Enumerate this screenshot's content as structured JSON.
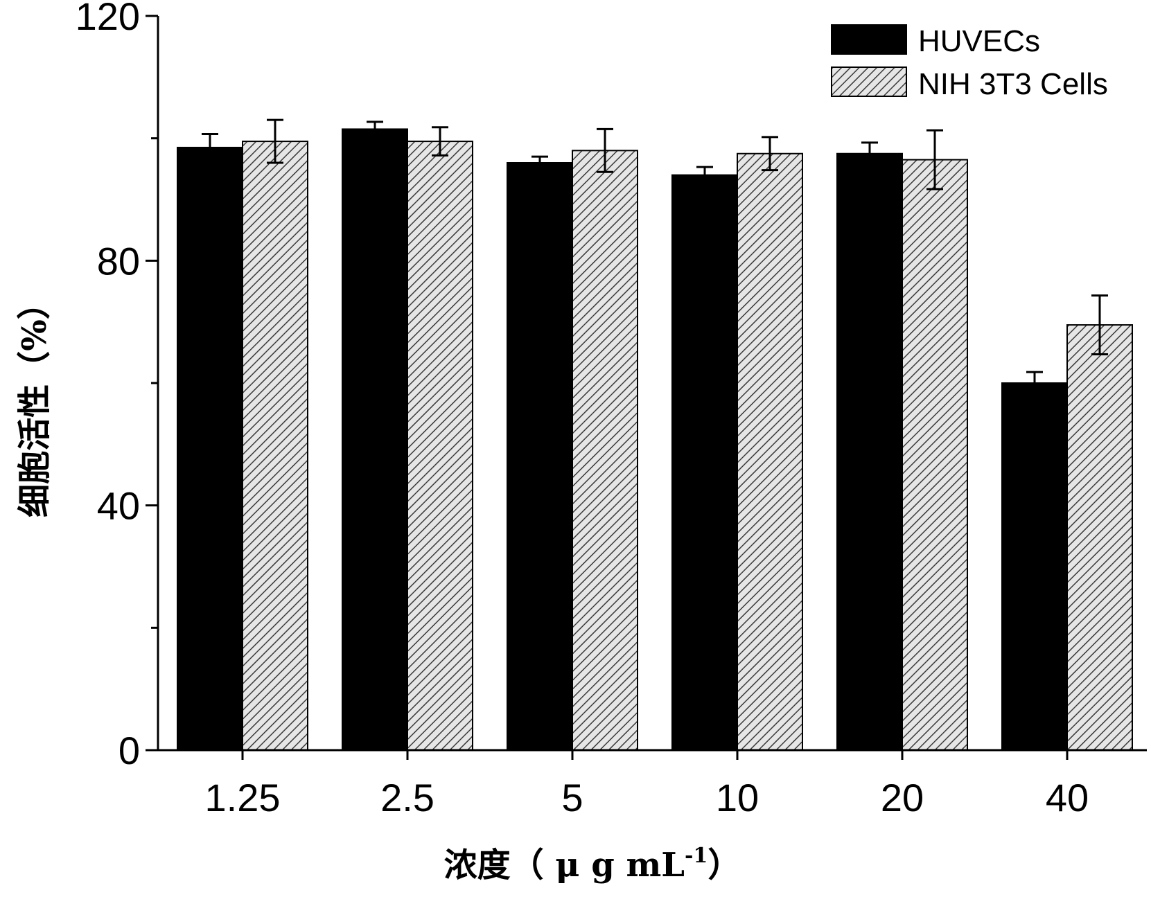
{
  "chart_data": {
    "type": "bar",
    "categories": [
      "1.25",
      "2.5",
      "5",
      "10",
      "20",
      "40"
    ],
    "series": [
      {
        "name": "HUVECs",
        "values": [
          98.5,
          101.5,
          96,
          94,
          97.5,
          60
        ],
        "errors": [
          2.2,
          1.2,
          1.0,
          1.3,
          1.8,
          1.8
        ]
      },
      {
        "name": "NIH 3T3 Cells",
        "values": [
          99.5,
          99.5,
          98,
          97.5,
          96.5,
          69.5
        ],
        "errors": [
          3.5,
          2.3,
          3.5,
          2.7,
          4.8,
          4.8
        ]
      }
    ],
    "yticks": [
      "0",
      "40",
      "80",
      "120"
    ],
    "ylim": [
      0,
      120
    ],
    "ylabel": "细胞活性（%）",
    "xlabel_main": "浓度（ μ g mL",
    "xlabel_sup": "-1",
    "xlabel_end": "）",
    "legend_position": "top-right",
    "colors": {
      "HUVECs": "#000000",
      "NIH 3T3 Cells": "hatched-gray"
    }
  }
}
